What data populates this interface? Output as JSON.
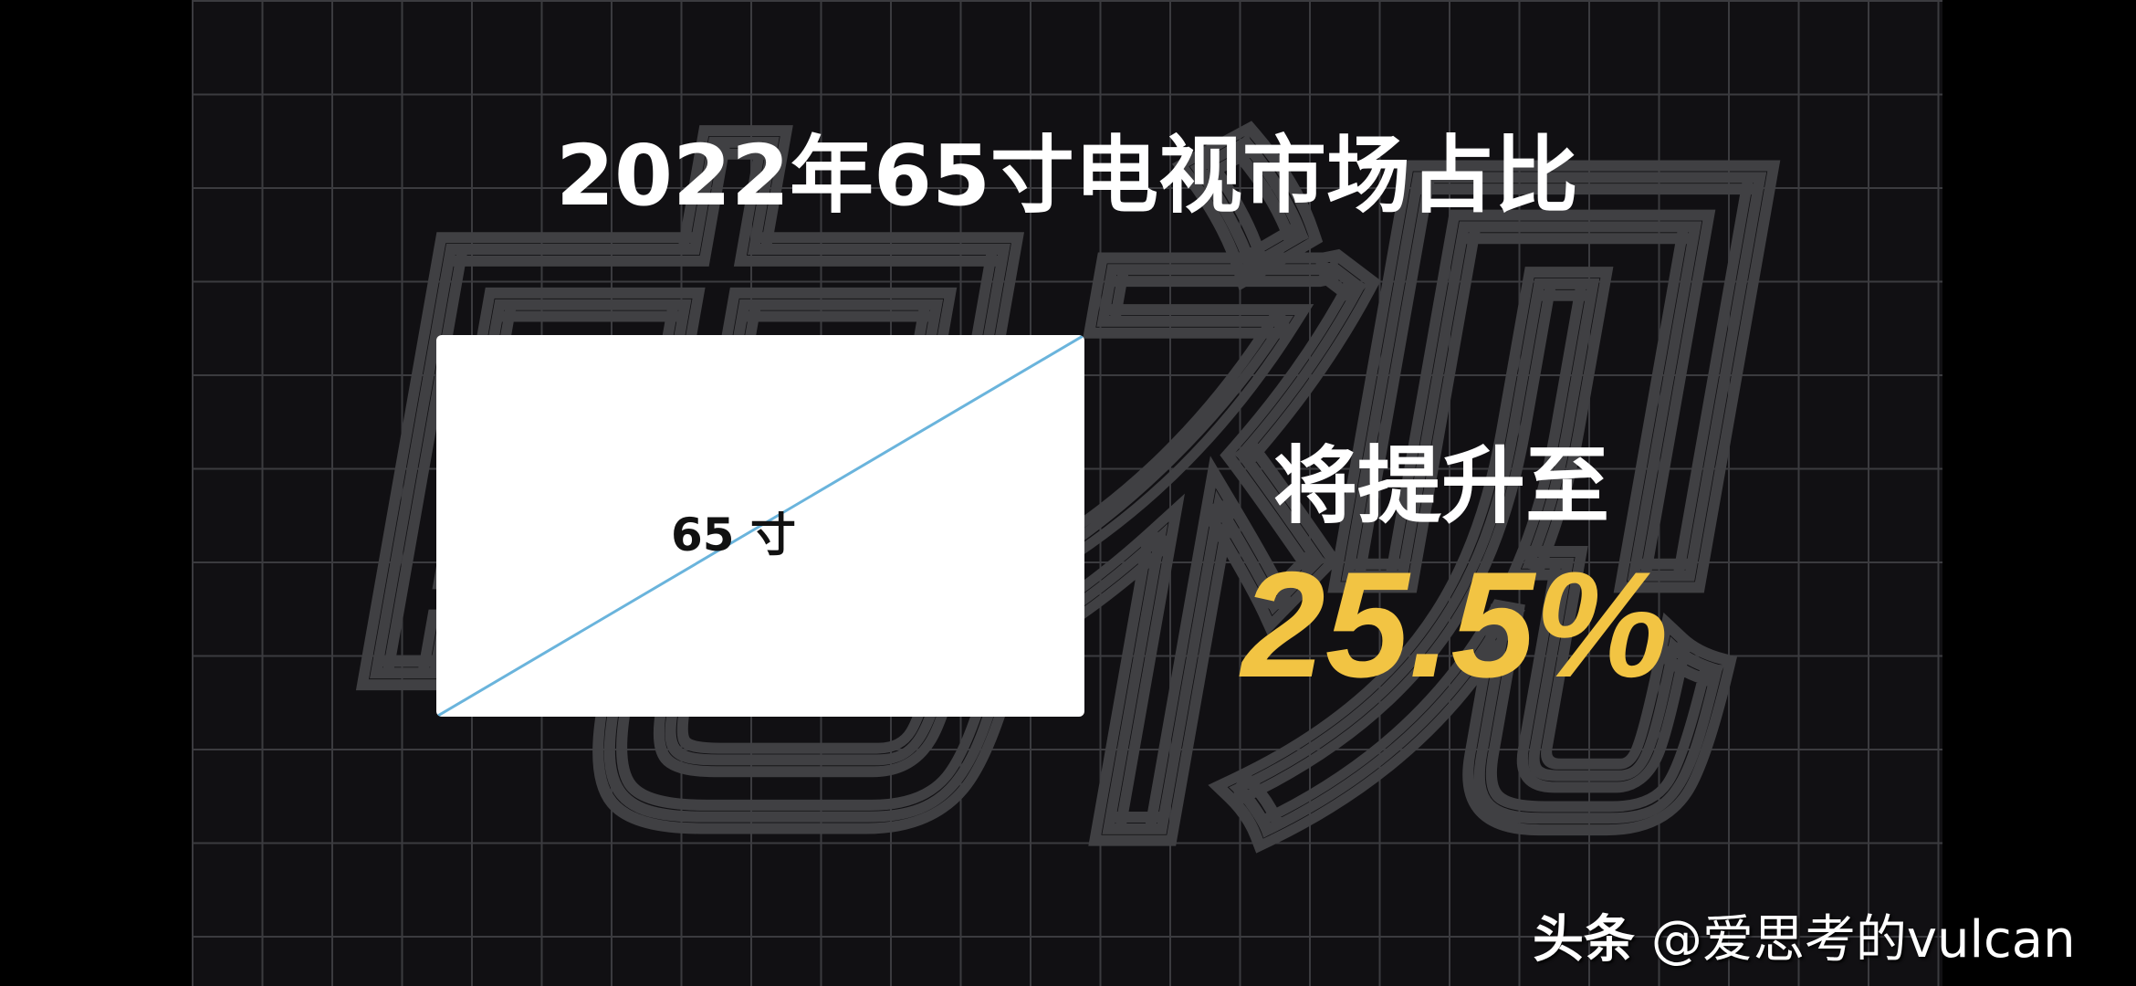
{
  "background_text": "电视",
  "title": "2022年65寸电视市场占比",
  "tv": {
    "size_label": "65 寸",
    "diagonal_color": "#6ab4dc"
  },
  "headline": "将提升至",
  "percentage": "25.5%",
  "accent_color": "#f2c443",
  "watermark": {
    "brand": "头条",
    "handle": "@爱思考的vulcan"
  }
}
